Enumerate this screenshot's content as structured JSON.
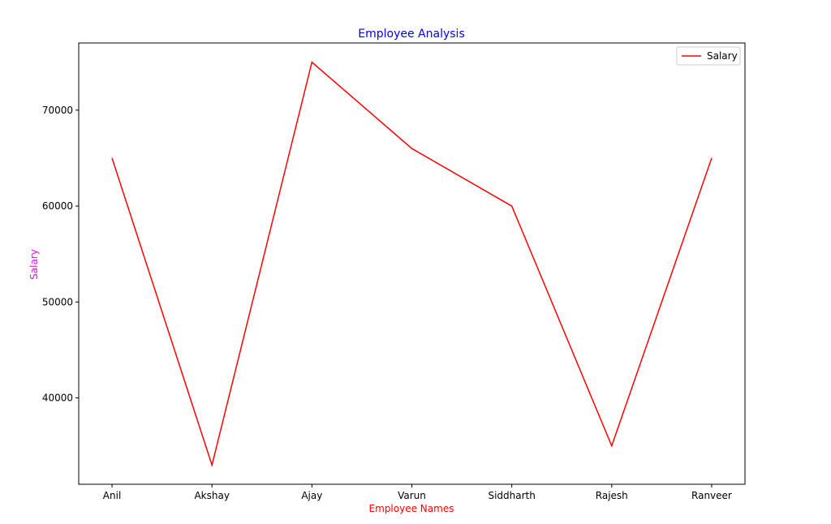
{
  "chart_data": {
    "type": "line",
    "title": "Employee Analysis",
    "xlabel": "Employee Names",
    "ylabel": "Salary",
    "categories": [
      "Anil",
      "Akshay",
      "Ajay",
      "Varun",
      "Siddharth",
      "Rajesh",
      "Ranveer"
    ],
    "series": [
      {
        "name": "Salary",
        "values": [
          65000,
          33000,
          75000,
          66000,
          60000,
          35000,
          65000
        ],
        "color": "#ff0000"
      }
    ],
    "ylim": [
      31000,
      77000
    ],
    "yticks": [
      40000,
      50000,
      60000,
      70000
    ],
    "grid": false,
    "legend": "top-right",
    "colors": {
      "title": "#0000ff",
      "xlabel": "#ff0000",
      "ylabel": "#ff00ff"
    }
  }
}
